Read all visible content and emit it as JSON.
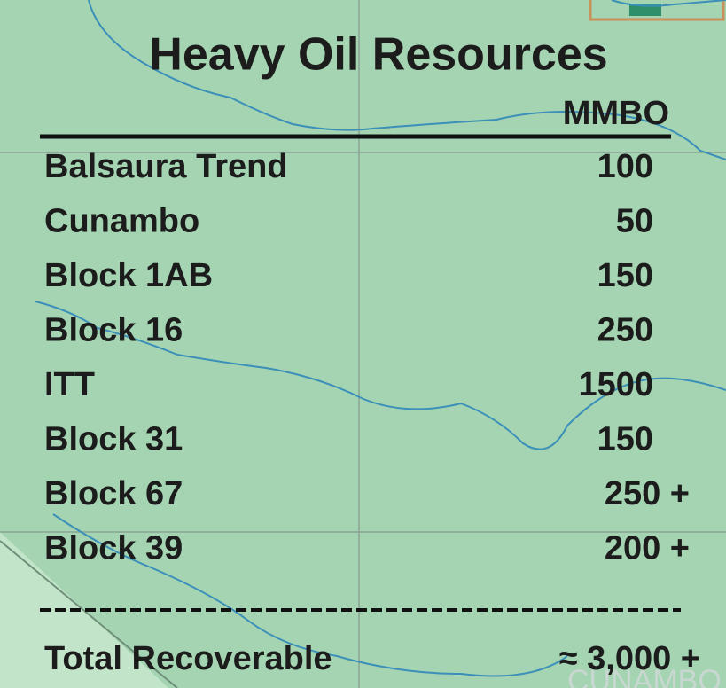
{
  "title": "Heavy Oil  Resources",
  "unit_header": "MMBO",
  "rows": [
    [
      "Balsaura Trend",
      "100"
    ],
    [
      "Cunambo",
      "50"
    ],
    [
      "Block 1AB",
      "150"
    ],
    [
      "Block 16",
      "250"
    ],
    [
      "ITT",
      "1500"
    ],
    [
      "Block 31",
      "150"
    ],
    [
      "Block 67",
      "250 +"
    ],
    [
      "Block 39",
      "200 +"
    ]
  ],
  "total": {
    "label": "Total Recoverable",
    "value": "≈  3,000 +"
  },
  "map_label": "CUNAMBO"
}
